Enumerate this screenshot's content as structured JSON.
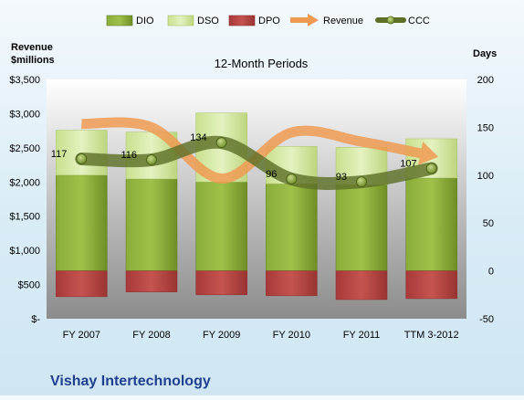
{
  "chart_data": {
    "type": "bar",
    "subtitle": "12-Month Periods",
    "company": "Vishay Intertechnology",
    "y_left_label_line1": "Revenue",
    "y_left_label_line2": "$millions",
    "y_right_label": "Days",
    "categories": [
      "FY 2007",
      "FY 2008",
      "FY 2009",
      "FY 2010",
      "FY 2011",
      "TTM 3-2012"
    ],
    "left_axis": {
      "min": 0,
      "max": 3500,
      "ticks": [
        0,
        500,
        1000,
        1500,
        2000,
        2500,
        3000,
        3500
      ],
      "tick_labels": [
        "$-",
        "$500",
        "$1,000",
        "$1,500",
        "$2,000",
        "$2,500",
        "$3,000",
        "$3,500"
      ]
    },
    "right_axis": {
      "min": -50,
      "max": 200,
      "ticks": [
        -50,
        0,
        50,
        100,
        150,
        200
      ],
      "tick_labels": [
        "-50",
        "0",
        "50",
        "100",
        "150",
        "200"
      ]
    },
    "series": [
      {
        "name": "DIO",
        "axis": "right",
        "kind": "bar",
        "values": [
          100,
          96,
          93,
          91,
          90,
          97
        ],
        "color": "#7a9a2c"
      },
      {
        "name": "DSO",
        "axis": "right",
        "kind": "bar",
        "values": [
          47,
          49,
          72,
          39,
          39,
          41
        ],
        "color": "#d4e8a8"
      },
      {
        "name": "DPO",
        "axis": "right",
        "kind": "bar",
        "values": [
          -27,
          -22,
          -25,
          -26,
          -30,
          -29
        ],
        "color": "#b8453f"
      },
      {
        "name": "Revenue",
        "axis": "left",
        "kind": "line",
        "values": [
          2850,
          2800,
          2050,
          2725,
          2590,
          2420
        ],
        "color": "#ef9a52"
      },
      {
        "name": "CCC",
        "axis": "right",
        "kind": "line",
        "values": [
          117,
          116,
          134,
          96,
          93,
          107
        ],
        "labels": [
          "117",
          "116",
          "134",
          "96",
          "93",
          "107"
        ],
        "color": "#5e7028"
      }
    ],
    "legend_position": "top",
    "grid": false
  }
}
